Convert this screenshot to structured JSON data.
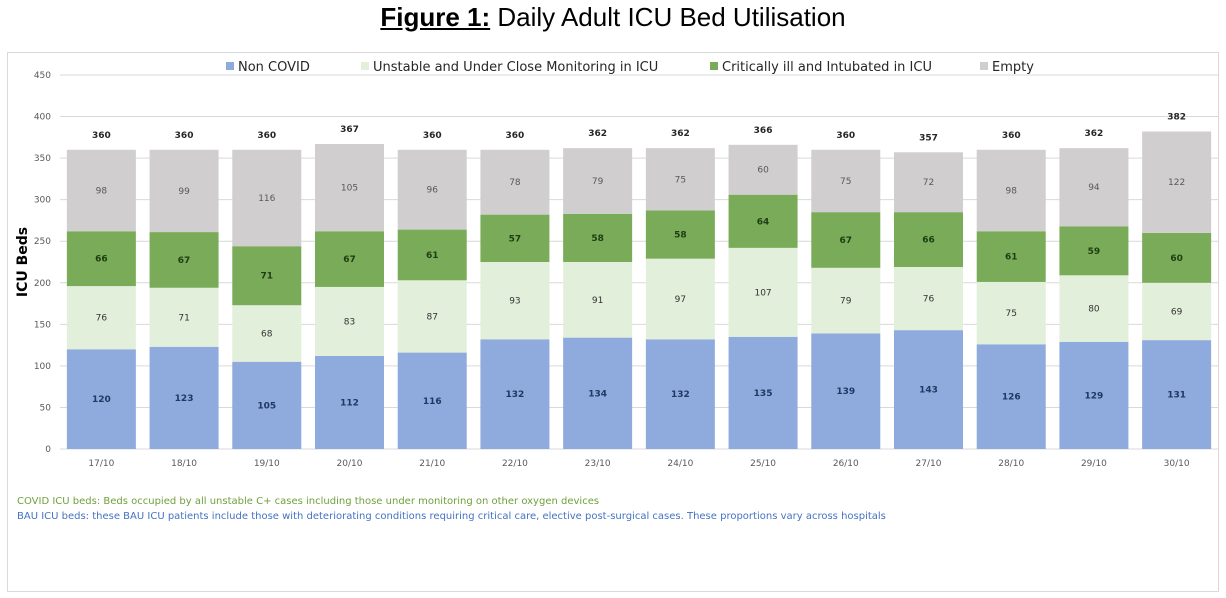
{
  "figure": {
    "label": "Figure 1:",
    "title": "Daily Adult ICU Bed Utilisation"
  },
  "chart_data": {
    "type": "bar",
    "stacked": true,
    "categories": [
      "17/10",
      "18/10",
      "19/10",
      "20/10",
      "21/10",
      "22/10",
      "23/10",
      "24/10",
      "25/10",
      "26/10",
      "27/10",
      "28/10",
      "29/10",
      "30/10"
    ],
    "series": [
      {
        "name": "Non COVID",
        "color": "#8faadc",
        "values": [
          120,
          123,
          105,
          112,
          116,
          132,
          134,
          132,
          135,
          139,
          143,
          126,
          129,
          131
        ]
      },
      {
        "name": "Unstable and Under Close Monitoring in ICU",
        "color": "#e2efda",
        "values": [
          76,
          71,
          68,
          83,
          87,
          93,
          91,
          97,
          107,
          79,
          76,
          75,
          80,
          69
        ]
      },
      {
        "name": "Critically ill and Intubated in ICU",
        "color": "#7aab58",
        "values": [
          66,
          67,
          71,
          67,
          61,
          57,
          58,
          58,
          64,
          67,
          66,
          61,
          59,
          60
        ]
      },
      {
        "name": "Empty",
        "color": "#d0cece",
        "values": [
          98,
          99,
          116,
          105,
          96,
          78,
          79,
          75,
          60,
          75,
          72,
          98,
          94,
          122
        ]
      }
    ],
    "totals": [
      360,
      360,
      360,
      367,
      360,
      360,
      362,
      362,
      366,
      360,
      357,
      360,
      362,
      382
    ],
    "ylabel": "ICU Beds",
    "xlabel": "",
    "ylim": [
      0,
      450
    ],
    "yticks": [
      0,
      50,
      100,
      150,
      200,
      250,
      300,
      350,
      400,
      450
    ],
    "grid": true,
    "legend_position": "top"
  },
  "notes": {
    "covid": "COVID ICU beds: Beds occupied by all unstable C+ cases including those under monitoring on other oxygen devices",
    "bau": "BAU ICU beds: these BAU ICU patients include those with deteriorating conditions requiring critical care, elective post-surgical cases. These proportions vary across hospitals"
  }
}
